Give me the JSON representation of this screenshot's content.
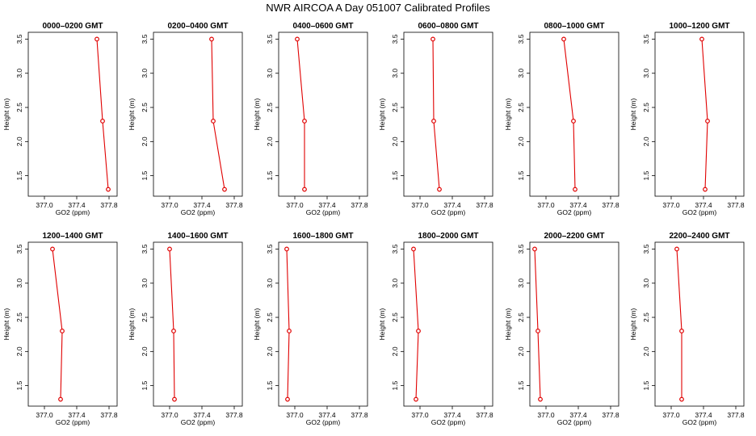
{
  "chart_data": {
    "type": "line",
    "title": "NWR AIRCOA A  Day 051007  Calibrated Profiles",
    "layout": "2 rows x 6 columns",
    "xlabel": "GO2 (ppm)",
    "ylabel": "Height (m)",
    "xlim": [
      376.8,
      377.9
    ],
    "ylim": [
      1.2,
      3.6
    ],
    "xticks": [
      377.0,
      377.4,
      377.8
    ],
    "xtick_labels": [
      "377.0",
      "377.4",
      "377.8"
    ],
    "yticks": [
      1.5,
      2.0,
      2.5,
      3.0,
      3.5
    ],
    "ytick_labels": [
      "1.5",
      "2.0",
      "2.5",
      "3.0",
      "3.5"
    ],
    "series_color": "#e00000",
    "heights": [
      3.5,
      2.3,
      1.3
    ],
    "panels": [
      {
        "title": "0000–0200 GMT",
        "values": [
          377.65,
          377.72,
          377.79
        ]
      },
      {
        "title": "0200–0400 GMT",
        "values": [
          377.52,
          377.54,
          377.68
        ]
      },
      {
        "title": "0400–0600 GMT",
        "values": [
          377.03,
          377.12,
          377.12
        ]
      },
      {
        "title": "0600–0800 GMT",
        "values": [
          377.16,
          377.17,
          377.24
        ]
      },
      {
        "title": "0800–1000 GMT",
        "values": [
          377.22,
          377.34,
          377.36
        ]
      },
      {
        "title": "1000–1200 GMT",
        "values": [
          377.38,
          377.45,
          377.42
        ]
      },
      {
        "title": "1200–1400 GMT",
        "values": [
          377.1,
          377.22,
          377.2
        ]
      },
      {
        "title": "1400–1600 GMT",
        "values": [
          377.0,
          377.05,
          377.06
        ]
      },
      {
        "title": "1600–1800 GMT",
        "values": [
          376.9,
          376.93,
          376.91
        ]
      },
      {
        "title": "1800–2000 GMT",
        "values": [
          376.92,
          376.98,
          376.95
        ]
      },
      {
        "title": "2000–2200 GMT",
        "values": [
          376.86,
          376.9,
          376.93
        ]
      },
      {
        "title": "2200–2400 GMT",
        "values": [
          377.07,
          377.13,
          377.13
        ]
      }
    ]
  }
}
